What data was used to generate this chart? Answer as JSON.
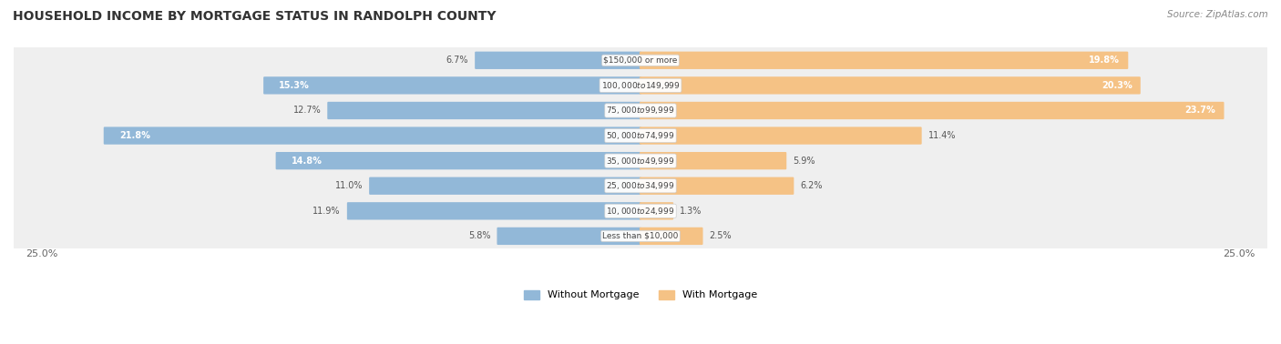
{
  "title": "HOUSEHOLD INCOME BY MORTGAGE STATUS IN RANDOLPH COUNTY",
  "source": "Source: ZipAtlas.com",
  "categories": [
    "Less than $10,000",
    "$10,000 to $24,999",
    "$25,000 to $34,999",
    "$35,000 to $49,999",
    "$50,000 to $74,999",
    "$75,000 to $99,999",
    "$100,000 to $149,999",
    "$150,000 or more"
  ],
  "without_mortgage": [
    5.8,
    11.9,
    11.0,
    14.8,
    21.8,
    12.7,
    15.3,
    6.7
  ],
  "with_mortgage": [
    2.5,
    1.3,
    6.2,
    5.9,
    11.4,
    23.7,
    20.3,
    19.8
  ],
  "blue_color": "#92b8d8",
  "orange_color": "#f5c285",
  "row_bg_color": "#efefef",
  "axis_limit": 25.0,
  "legend_labels": [
    "Without Mortgage",
    "With Mortgage"
  ],
  "axis_label_left": "25.0%",
  "axis_label_right": "25.0%",
  "inside_label_threshold": 14.0
}
